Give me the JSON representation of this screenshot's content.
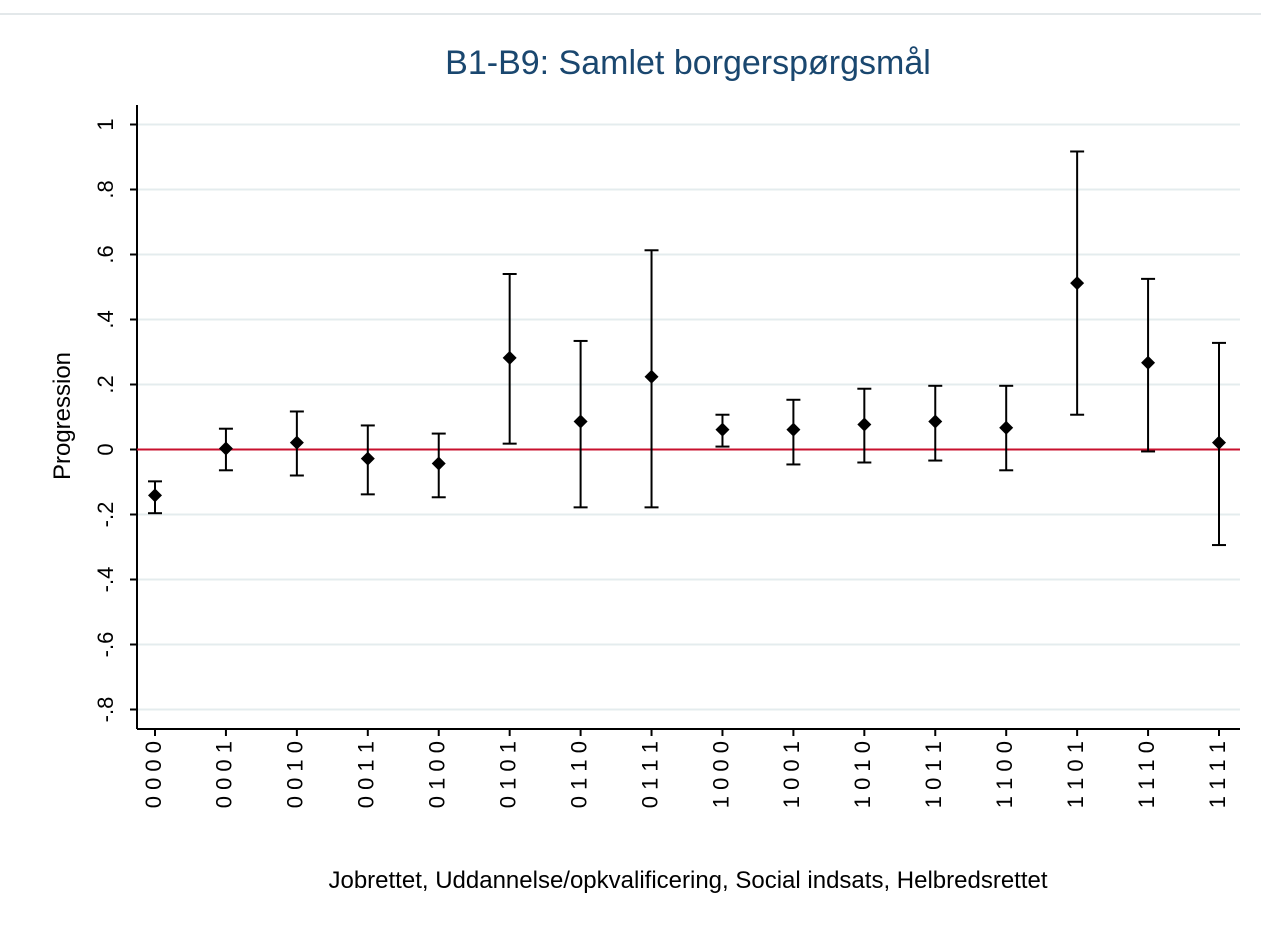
{
  "chart_data": {
    "type": "errorbar",
    "title": "B1-B9: Samlet borgerspørgsmål",
    "x_label": "Jobrettet, Uddannelse/opkvalificering, Social indsats, Helbredsrettet",
    "y_label": "Progression",
    "categories": [
      "0 0 0 0",
      "0 0 0 1",
      "0 0 1 0",
      "0 0 1 1",
      "0 1 0 0",
      "0 1 0 1",
      "0 1 1 0",
      "0 1 1 1",
      "1 0 0 0",
      "1 0 0 1",
      "1 0 1 0",
      "1 0 1 1",
      "1 1 0 0",
      "1 1 0 1",
      "1 1 1 0",
      "1 1 1 1"
    ],
    "values": [
      -0.141,
      0.003,
      0.021,
      -0.028,
      -0.043,
      0.282,
      0.086,
      0.224,
      0.061,
      0.061,
      0.077,
      0.086,
      0.067,
      0.512,
      0.267,
      0.021
    ],
    "ci_lower": [
      -0.196,
      -0.064,
      -0.08,
      -0.138,
      -0.147,
      0.018,
      -0.178,
      -0.178,
      0.009,
      -0.046,
      -0.04,
      -0.034,
      -0.064,
      0.107,
      -0.006,
      -0.294
    ],
    "ci_upper": [
      -0.098,
      0.064,
      0.117,
      0.074,
      0.049,
      0.54,
      0.334,
      0.613,
      0.107,
      0.153,
      0.187,
      0.196,
      0.196,
      0.917,
      0.525,
      0.328
    ],
    "color": "#000000",
    "reference_line": 0,
    "reference_color": "#c8102e",
    "ylim": [
      -0.86,
      1.06
    ],
    "yticks": [
      1,
      {
        "value": 0.8,
        "label": ".8"
      },
      {
        "value": 0.6,
        "label": ".6"
      },
      {
        "value": 0.4,
        "label": ".4"
      },
      {
        "value": 0.2,
        "label": ".2"
      },
      0,
      {
        "value": -0.2,
        "label": "-.2"
      },
      {
        "value": -0.4,
        "label": "-.4"
      },
      {
        "value": -0.6,
        "label": "-.6"
      },
      {
        "value": -0.8,
        "label": "-.8"
      }
    ],
    "grid": true
  }
}
